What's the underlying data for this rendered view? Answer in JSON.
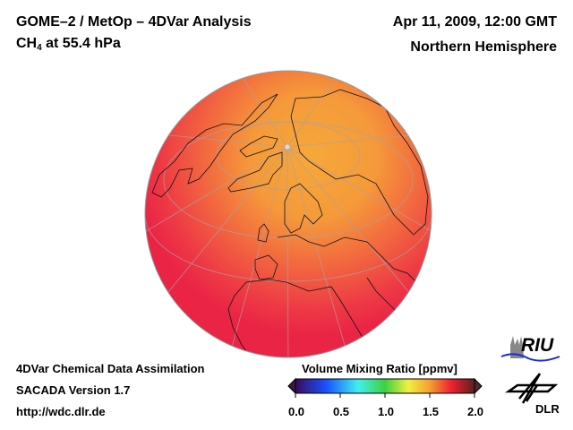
{
  "header": {
    "title": "GOME–2 / MetOp – 4DVar Analysis",
    "species": "CH",
    "species_sub": "4",
    "level": " at 55.4 hPa",
    "datetime": "Apr 11, 2009, 12:00 GMT",
    "region": "Northern Hemisphere"
  },
  "footer": {
    "line1": "4DVar Chemical Data Assimilation",
    "line2": "SACADA Version 1.7",
    "line3": "http://wdc.dlr.de"
  },
  "colorbar": {
    "label": "Volume Mixing Ratio [ppmv]",
    "ticks": [
      "0.0",
      "0.5",
      "1.0",
      "1.5",
      "2.0"
    ],
    "range": [
      0.0,
      2.0
    ],
    "colors": [
      "#3a0a5c",
      "#1a50ff",
      "#40f0f0",
      "#40d040",
      "#f0f040",
      "#f5a030",
      "#f02030",
      "#5a2020"
    ]
  },
  "map": {
    "projection": "orthographic",
    "field_colors": {
      "high": "#f6a33a",
      "low": "#ef2b47"
    }
  },
  "logos": {
    "riu": "RIU",
    "dlr": "DLR"
  }
}
